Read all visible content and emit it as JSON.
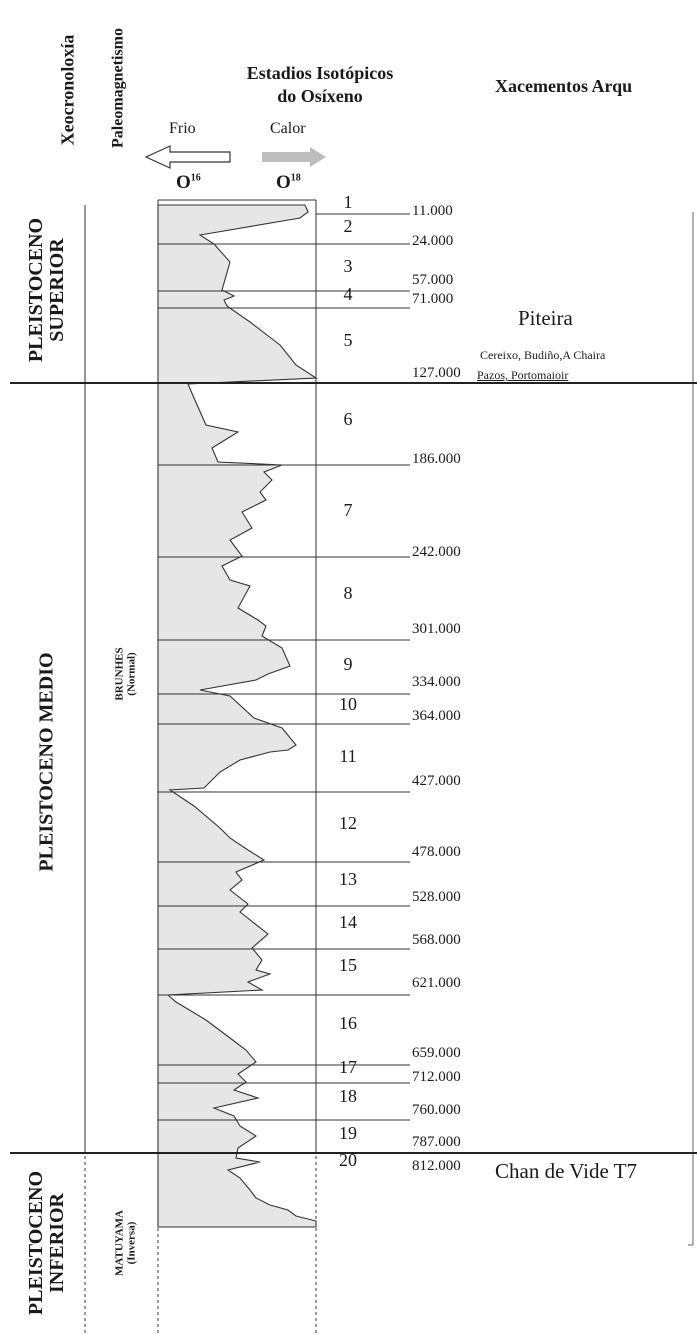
{
  "headers": {
    "geochronology": "Xeocronoloxía",
    "paleomagnetism": "Paleomagnetismo",
    "isotope_title_line1": "Estadios Isotópicos",
    "isotope_title_line2": "do Osíxeno",
    "archaeological_sites": "Xacementos Arqu",
    "cold_label": "Frio",
    "warm_label": "Calor",
    "o16": "O",
    "o16_sup": "16",
    "o18": "O",
    "o18_sup": "18"
  },
  "epochs": [
    {
      "line1": "PLEISTOCENO",
      "line2": "SUPERIOR"
    },
    {
      "line1": "PLEISTOCENO MEDIO",
      "line2": ""
    },
    {
      "line1": "PLEISTOCENO",
      "line2": "INFERIOR"
    }
  ],
  "chrons": [
    {
      "name": "BRUNHES",
      "polarity": "(Normal)"
    },
    {
      "name": "MATUYAMA",
      "polarity": "(Inversa)"
    }
  ],
  "sites": {
    "piteira": "Piteira",
    "cereixo": "Cereixo, Budiño,A Chaira",
    "pazos": "Pazos, Portomaioir",
    "chan_de_vide": "Chan de Vide T7"
  },
  "chart_data": {
    "type": "stratigraphic-column",
    "stages": [
      {
        "label": "1",
        "age_end": "11.000"
      },
      {
        "label": "2",
        "age_end": "24.000"
      },
      {
        "label": "3",
        "age_end": "57.000"
      },
      {
        "label": "4",
        "age_end": "71.000"
      },
      {
        "label": "5",
        "age_end": "127.000"
      },
      {
        "label": "6",
        "age_end": "186.000"
      },
      {
        "label": "7",
        "age_end": "242.000"
      },
      {
        "label": "8",
        "age_end": "301.000"
      },
      {
        "label": "9",
        "age_end": "334.000"
      },
      {
        "label": "10",
        "age_end": "364.000"
      },
      {
        "label": "11",
        "age_end": "427.000"
      },
      {
        "label": "12",
        "age_end": "478.000"
      },
      {
        "label": "13",
        "age_end": "528.000"
      },
      {
        "label": "14",
        "age_end": "568.000"
      },
      {
        "label": "15",
        "age_end": "621.000"
      },
      {
        "label": "16",
        "age_end": "659.000"
      },
      {
        "label": "17",
        "age_end": "712.000"
      },
      {
        "label": "18",
        "age_end": "760.000"
      },
      {
        "label": "19",
        "age_end": "787.000"
      },
      {
        "label": "20",
        "age_end": "812.000"
      }
    ],
    "colors": {
      "curve_fill": "#e6e6e6",
      "line": "#333333",
      "warm_arrow": "#b0b0b0"
    }
  }
}
